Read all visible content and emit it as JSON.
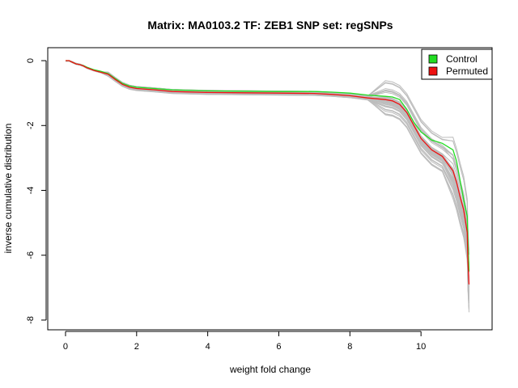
{
  "chart_data": {
    "type": "line",
    "title": "Matrix: MA0103.2 TF: ZEB1 SNP set: regSNPs",
    "xlabel": "weight fold change",
    "ylabel": "inverse cumulative distribution",
    "xlim": [
      -0.5,
      12.0
    ],
    "ylim": [
      -8.3,
      0.4
    ],
    "xticks": [
      0,
      2,
      4,
      6,
      8,
      10
    ],
    "yticks": [
      0,
      -2,
      -4,
      -6,
      -8
    ],
    "grid": false,
    "legend_position": "top-right",
    "legend": [
      {
        "label": "Control",
        "color": "#22dd22"
      },
      {
        "label": "Permuted",
        "color": "#ee1111"
      }
    ],
    "series": [
      {
        "name": "Control",
        "color": "#22dd22",
        "x": [
          0.0,
          0.1,
          0.2,
          0.3,
          0.4,
          0.5,
          0.6,
          0.8,
          1.0,
          1.2,
          1.4,
          1.6,
          1.8,
          2.0,
          2.5,
          3.0,
          4.0,
          5.0,
          6.0,
          7.0,
          7.5,
          8.0,
          8.5,
          9.0,
          9.2,
          9.4,
          9.6,
          9.8,
          10.0,
          10.3,
          10.6,
          10.9,
          11.0,
          11.1,
          11.2,
          11.3,
          11.32,
          11.35
        ],
        "y": [
          0.0,
          0.0,
          -0.05,
          -0.1,
          -0.12,
          -0.15,
          -0.2,
          -0.28,
          -0.33,
          -0.4,
          -0.55,
          -0.7,
          -0.78,
          -0.82,
          -0.86,
          -0.9,
          -0.93,
          -0.94,
          -0.95,
          -0.95,
          -0.97,
          -1.0,
          -1.06,
          -1.1,
          -1.12,
          -1.2,
          -1.5,
          -1.9,
          -2.2,
          -2.45,
          -2.55,
          -2.75,
          -3.1,
          -3.7,
          -4.3,
          -4.8,
          -5.5,
          -6.5
        ]
      },
      {
        "name": "Permuted",
        "color": "#ee1111",
        "x": [
          0.0,
          0.1,
          0.2,
          0.3,
          0.4,
          0.5,
          0.6,
          0.8,
          1.0,
          1.2,
          1.4,
          1.6,
          1.8,
          2.0,
          2.5,
          3.0,
          4.0,
          5.0,
          6.0,
          7.0,
          7.5,
          8.0,
          8.5,
          9.0,
          9.2,
          9.4,
          9.6,
          9.8,
          10.0,
          10.3,
          10.6,
          10.9,
          11.0,
          11.1,
          11.2,
          11.3,
          11.32,
          11.35
        ],
        "y": [
          0.0,
          0.0,
          -0.05,
          -0.1,
          -0.12,
          -0.16,
          -0.22,
          -0.3,
          -0.36,
          -0.42,
          -0.58,
          -0.73,
          -0.82,
          -0.86,
          -0.9,
          -0.95,
          -0.98,
          -0.99,
          -1.0,
          -1.01,
          -1.04,
          -1.08,
          -1.15,
          -1.2,
          -1.24,
          -1.35,
          -1.6,
          -2.0,
          -2.4,
          -2.75,
          -2.95,
          -3.4,
          -3.75,
          -4.2,
          -4.6,
          -5.3,
          -6.2,
          -6.9
        ]
      }
    ]
  }
}
